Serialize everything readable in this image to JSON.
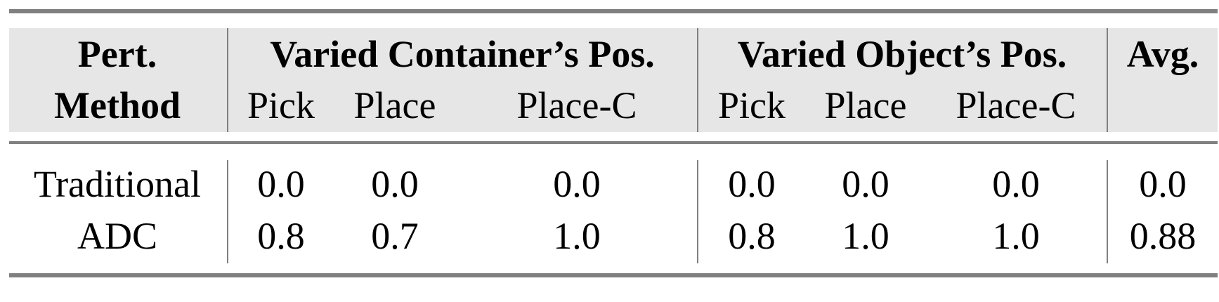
{
  "header": {
    "row1": {
      "method": "Pert.",
      "group1": "Varied Container’s Pos.",
      "group2": "Varied Object’s Pos.",
      "avg": "Avg."
    },
    "row2": {
      "method": "Method",
      "sub": [
        "Pick",
        "Place",
        "Place-C",
        "Pick",
        "Place",
        "Place-C"
      ]
    }
  },
  "rows": [
    {
      "method": "Traditional",
      "values": [
        "0.0",
        "0.0",
        "0.0",
        "0.0",
        "0.0",
        "0.0",
        "0.0"
      ]
    },
    {
      "method": "ADC",
      "values": [
        "0.8",
        "0.7",
        "1.0",
        "0.8",
        "1.0",
        "1.0",
        "0.88"
      ]
    }
  ],
  "colors": {
    "header_bg": "#e6e6e6",
    "rule": "#808080"
  }
}
